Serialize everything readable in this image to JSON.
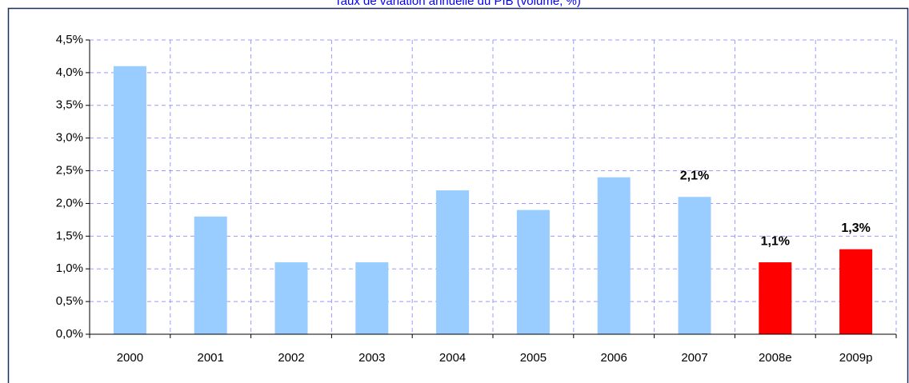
{
  "chart_data": {
    "type": "bar",
    "title": "Taux de variation annuelle du PIB (volume, %)",
    "categories": [
      "2000",
      "2001",
      "2002",
      "2003",
      "2004",
      "2005",
      "2006",
      "2007",
      "2008e",
      "2009p"
    ],
    "values": [
      4.1,
      1.8,
      1.1,
      1.1,
      2.2,
      1.9,
      2.4,
      2.1,
      1.1,
      1.3
    ],
    "value_labels": [
      null,
      null,
      null,
      null,
      null,
      null,
      null,
      "2,1%",
      "1,1%",
      "1,3%"
    ],
    "colors": [
      "#99ccff",
      "#99ccff",
      "#99ccff",
      "#99ccff",
      "#99ccff",
      "#99ccff",
      "#99ccff",
      "#99ccff",
      "#ff0000",
      "#ff0000"
    ],
    "ylim": [
      0,
      4.5
    ],
    "yticks": [
      {
        "value": 0,
        "label": "0,0%"
      },
      {
        "value": 0.5,
        "label": "0,5%"
      },
      {
        "value": 1,
        "label": "1,0%"
      },
      {
        "value": 1.5,
        "label": "1,5%"
      },
      {
        "value": 2,
        "label": "2,0%"
      },
      {
        "value": 2.5,
        "label": "2,5%"
      },
      {
        "value": 3,
        "label": "3,0%"
      },
      {
        "value": 3.5,
        "label": "3,5%"
      },
      {
        "value": 4,
        "label": "4,0%"
      },
      {
        "value": 4.5,
        "label": "4,5%"
      }
    ],
    "grid": true
  }
}
